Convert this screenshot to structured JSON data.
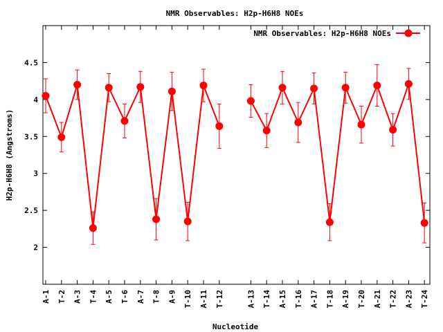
{
  "chart_data": {
    "type": "line",
    "title": "NMR Observables: H2p-H6H8 NOEs",
    "xlabel": "Nucleotide",
    "ylabel": "H2p-H6H8 (Angstroms)",
    "ylim": [
      1.5,
      5.0
    ],
    "yticks": [
      "2",
      "2.5",
      "3",
      "3.5",
      "4",
      "4.5"
    ],
    "ytick_values": [
      2,
      2.5,
      3,
      3.5,
      4,
      4.5
    ],
    "legend_position": "top-right",
    "color": "#ff0000",
    "categories": [
      "A-1",
      "T-2",
      "A-3",
      "T-4",
      "A-5",
      "T-6",
      "A-7",
      "T-8",
      "A-9",
      "T-10",
      "A-11",
      "T-12",
      "A-13",
      "T-14",
      "A-15",
      "T-16",
      "A-17",
      "T-18",
      "A-19",
      "T-20",
      "A-21",
      "T-22",
      "A-23",
      "T-24"
    ],
    "series": [
      {
        "name": "NMR Observables: H2p-H6H8 NOEs",
        "values": [
          4.05,
          3.49,
          4.2,
          2.26,
          4.16,
          3.71,
          4.17,
          2.38,
          4.11,
          2.35,
          4.19,
          3.64,
          3.98,
          3.58,
          4.16,
          3.69,
          4.15,
          2.34,
          4.16,
          3.66,
          4.19,
          3.59,
          4.21,
          2.33
        ],
        "errors": [
          0.23,
          0.2,
          0.2,
          0.22,
          0.19,
          0.23,
          0.21,
          0.28,
          0.26,
          0.26,
          0.22,
          0.3,
          0.22,
          0.23,
          0.22,
          0.27,
          0.21,
          0.25,
          0.21,
          0.25,
          0.28,
          0.22,
          0.21,
          0.27
        ]
      }
    ],
    "segments": [
      [
        0,
        11
      ],
      [
        12,
        23
      ]
    ]
  }
}
